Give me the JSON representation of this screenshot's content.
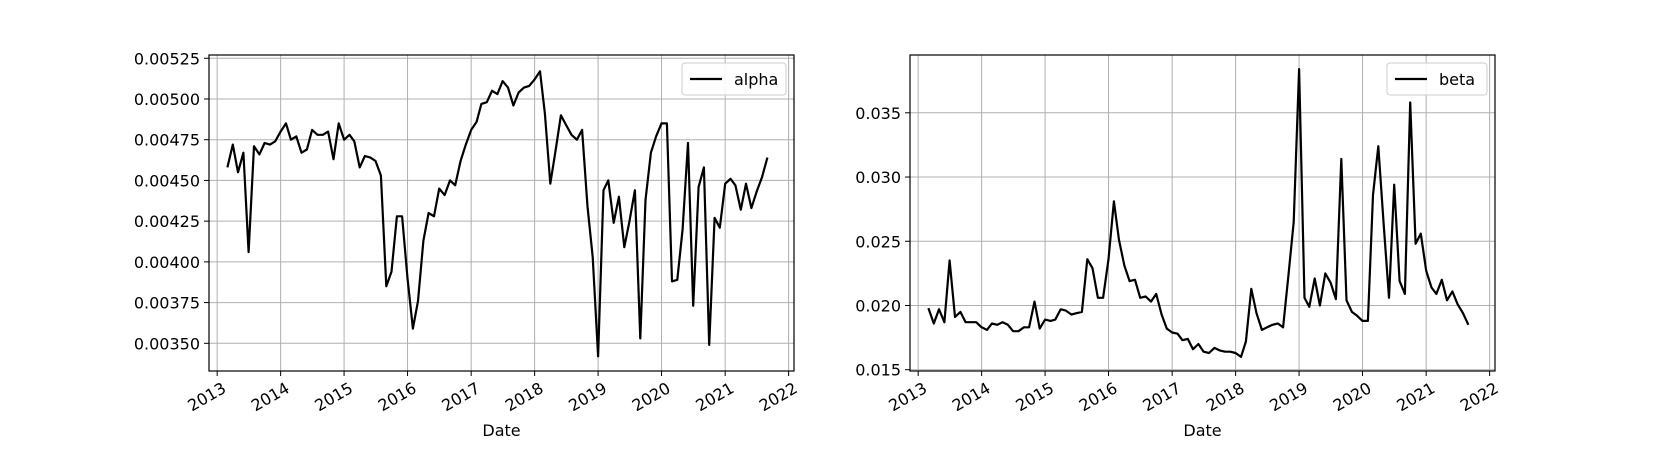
{
  "chart_data": [
    {
      "type": "line",
      "xlabel": "Date",
      "ylabel": "",
      "x_ticks": [
        "2013",
        "2014",
        "2015",
        "2016",
        "2017",
        "2018",
        "2019",
        "2020",
        "2021",
        "2022"
      ],
      "y_ticks": [
        "0.00350",
        "0.00375",
        "0.00400",
        "0.00425",
        "0.00450",
        "0.00475",
        "0.00500",
        "0.00525"
      ],
      "xlim": [
        "2012-11-15",
        "2022-02-01"
      ],
      "ylim": [
        0.00333,
        0.00527
      ],
      "grid": true,
      "legend": "top-right",
      "series": [
        {
          "name": "alpha",
          "color": "#000000",
          "points": [
            [
              "2013-03-01",
              0.00458
            ],
            [
              "2013-04-01",
              0.00472
            ],
            [
              "2013-05-01",
              0.00455
            ],
            [
              "2013-06-01",
              0.00467
            ],
            [
              "2013-07-01",
              0.00406
            ],
            [
              "2013-08-01",
              0.00471
            ],
            [
              "2013-09-01",
              0.00466
            ],
            [
              "2013-10-01",
              0.00473
            ],
            [
              "2013-11-01",
              0.00472
            ],
            [
              "2013-12-01",
              0.00474
            ],
            [
              "2014-01-01",
              0.0048
            ],
            [
              "2014-02-01",
              0.00485
            ],
            [
              "2014-03-01",
              0.00475
            ],
            [
              "2014-04-01",
              0.00477
            ],
            [
              "2014-05-01",
              0.00467
            ],
            [
              "2014-06-01",
              0.00469
            ],
            [
              "2014-07-01",
              0.00481
            ],
            [
              "2014-08-01",
              0.00478
            ],
            [
              "2014-09-01",
              0.00478
            ],
            [
              "2014-10-01",
              0.0048
            ],
            [
              "2014-11-01",
              0.00463
            ],
            [
              "2014-12-01",
              0.00485
            ],
            [
              "2015-01-01",
              0.00475
            ],
            [
              "2015-02-01",
              0.00478
            ],
            [
              "2015-03-01",
              0.00474
            ],
            [
              "2015-04-01",
              0.00458
            ],
            [
              "2015-05-01",
              0.00465
            ],
            [
              "2015-06-01",
              0.00464
            ],
            [
              "2015-07-01",
              0.00462
            ],
            [
              "2015-08-01",
              0.00453
            ],
            [
              "2015-09-01",
              0.00385
            ],
            [
              "2015-10-01",
              0.00394
            ],
            [
              "2015-11-01",
              0.00428
            ],
            [
              "2015-12-01",
              0.00428
            ],
            [
              "2016-01-01",
              0.0039
            ],
            [
              "2016-02-01",
              0.00359
            ],
            [
              "2016-03-01",
              0.00376
            ],
            [
              "2016-04-01",
              0.00413
            ],
            [
              "2016-05-01",
              0.0043
            ],
            [
              "2016-06-01",
              0.00428
            ],
            [
              "2016-07-01",
              0.00445
            ],
            [
              "2016-08-01",
              0.00441
            ],
            [
              "2016-09-01",
              0.0045
            ],
            [
              "2016-10-01",
              0.00447
            ],
            [
              "2016-11-01",
              0.00462
            ],
            [
              "2016-12-01",
              0.00472
            ],
            [
              "2017-01-01",
              0.00481
            ],
            [
              "2017-02-01",
              0.00486
            ],
            [
              "2017-03-01",
              0.00497
            ],
            [
              "2017-04-01",
              0.00498
            ],
            [
              "2017-05-01",
              0.00505
            ],
            [
              "2017-06-01",
              0.00503
            ],
            [
              "2017-07-01",
              0.00511
            ],
            [
              "2017-08-01",
              0.00507
            ],
            [
              "2017-09-01",
              0.00496
            ],
            [
              "2017-10-01",
              0.00504
            ],
            [
              "2017-11-01",
              0.00507
            ],
            [
              "2017-12-01",
              0.00508
            ],
            [
              "2018-01-01",
              0.00512
            ],
            [
              "2018-02-01",
              0.00517
            ],
            [
              "2018-03-01",
              0.00491
            ],
            [
              "2018-04-01",
              0.00448
            ],
            [
              "2018-05-01",
              0.00468
            ],
            [
              "2018-06-01",
              0.0049
            ],
            [
              "2018-07-01",
              0.00484
            ],
            [
              "2018-08-01",
              0.00478
            ],
            [
              "2018-09-01",
              0.00475
            ],
            [
              "2018-10-01",
              0.00481
            ],
            [
              "2018-11-01",
              0.00434
            ],
            [
              "2018-12-01",
              0.00403
            ],
            [
              "2019-01-01",
              0.00342
            ],
            [
              "2019-02-01",
              0.00444
            ],
            [
              "2019-03-01",
              0.0045
            ],
            [
              "2019-04-01",
              0.00424
            ],
            [
              "2019-05-01",
              0.0044
            ],
            [
              "2019-06-01",
              0.00409
            ],
            [
              "2019-07-01",
              0.00425
            ],
            [
              "2019-08-01",
              0.00444
            ],
            [
              "2019-09-01",
              0.00353
            ],
            [
              "2019-10-01",
              0.00438
            ],
            [
              "2019-11-01",
              0.00467
            ],
            [
              "2019-12-01",
              0.00477
            ],
            [
              "2020-01-01",
              0.00485
            ],
            [
              "2020-02-01",
              0.00485
            ],
            [
              "2020-03-01",
              0.00388
            ],
            [
              "2020-04-01",
              0.00389
            ],
            [
              "2020-05-01",
              0.0042
            ],
            [
              "2020-06-01",
              0.00473
            ],
            [
              "2020-07-01",
              0.00373
            ],
            [
              "2020-08-01",
              0.00446
            ],
            [
              "2020-09-01",
              0.00458
            ],
            [
              "2020-10-01",
              0.00349
            ],
            [
              "2020-11-01",
              0.00427
            ],
            [
              "2020-12-01",
              0.00421
            ],
            [
              "2021-01-01",
              0.00448
            ],
            [
              "2021-02-01",
              0.00451
            ],
            [
              "2021-03-01",
              0.00447
            ],
            [
              "2021-04-01",
              0.00432
            ],
            [
              "2021-05-01",
              0.00448
            ],
            [
              "2021-06-01",
              0.00433
            ],
            [
              "2021-07-01",
              0.00443
            ],
            [
              "2021-08-01",
              0.00452
            ],
            [
              "2021-09-01",
              0.00464
            ]
          ]
        }
      ]
    },
    {
      "type": "line",
      "xlabel": "Date",
      "ylabel": "",
      "x_ticks": [
        "2013",
        "2014",
        "2015",
        "2016",
        "2017",
        "2018",
        "2019",
        "2020",
        "2021",
        "2022"
      ],
      "y_ticks": [
        "0.015",
        "0.020",
        "0.025",
        "0.030",
        "0.035"
      ],
      "xlim": [
        "2012-11-15",
        "2022-02-01"
      ],
      "ylim": [
        0.0149,
        0.0395
      ],
      "grid": true,
      "legend": "top-right",
      "series": [
        {
          "name": "beta",
          "color": "#000000",
          "points": [
            [
              "2013-03-01",
              0.0198
            ],
            [
              "2013-04-01",
              0.0186
            ],
            [
              "2013-05-01",
              0.0197
            ],
            [
              "2013-06-01",
              0.0187
            ],
            [
              "2013-07-01",
              0.0235
            ],
            [
              "2013-08-01",
              0.0191
            ],
            [
              "2013-09-01",
              0.0195
            ],
            [
              "2013-10-01",
              0.0187
            ],
            [
              "2013-11-01",
              0.0187
            ],
            [
              "2013-12-01",
              0.0187
            ],
            [
              "2014-01-01",
              0.0183
            ],
            [
              "2014-02-01",
              0.0181
            ],
            [
              "2014-03-01",
              0.0186
            ],
            [
              "2014-04-01",
              0.0185
            ],
            [
              "2014-05-01",
              0.0187
            ],
            [
              "2014-06-01",
              0.0185
            ],
            [
              "2014-07-01",
              0.018
            ],
            [
              "2014-08-01",
              0.018
            ],
            [
              "2014-09-01",
              0.0183
            ],
            [
              "2014-10-01",
              0.0183
            ],
            [
              "2014-11-01",
              0.0203
            ],
            [
              "2014-12-01",
              0.0182
            ],
            [
              "2015-01-01",
              0.0189
            ],
            [
              "2015-02-01",
              0.0188
            ],
            [
              "2015-03-01",
              0.0189
            ],
            [
              "2015-04-01",
              0.0197
            ],
            [
              "2015-05-01",
              0.0196
            ],
            [
              "2015-06-01",
              0.0193
            ],
            [
              "2015-07-01",
              0.0194
            ],
            [
              "2015-08-01",
              0.0195
            ],
            [
              "2015-09-01",
              0.0236
            ],
            [
              "2015-10-01",
              0.0229
            ],
            [
              "2015-11-01",
              0.0206
            ],
            [
              "2015-12-01",
              0.0206
            ],
            [
              "2016-01-01",
              0.0236
            ],
            [
              "2016-02-01",
              0.0281
            ],
            [
              "2016-03-01",
              0.0251
            ],
            [
              "2016-04-01",
              0.0231
            ],
            [
              "2016-05-01",
              0.0219
            ],
            [
              "2016-06-01",
              0.022
            ],
            [
              "2016-07-01",
              0.0206
            ],
            [
              "2016-08-01",
              0.0207
            ],
            [
              "2016-09-01",
              0.0203
            ],
            [
              "2016-10-01",
              0.0209
            ],
            [
              "2016-11-01",
              0.0193
            ],
            [
              "2016-12-01",
              0.0182
            ],
            [
              "2017-01-01",
              0.0179
            ],
            [
              "2017-02-01",
              0.0178
            ],
            [
              "2017-03-01",
              0.0173
            ],
            [
              "2017-04-01",
              0.0174
            ],
            [
              "2017-05-01",
              0.0166
            ],
            [
              "2017-06-01",
              0.017
            ],
            [
              "2017-07-01",
              0.0164
            ],
            [
              "2017-08-01",
              0.0163
            ],
            [
              "2017-09-01",
              0.0167
            ],
            [
              "2017-10-01",
              0.0165
            ],
            [
              "2017-11-01",
              0.0164
            ],
            [
              "2017-12-01",
              0.0164
            ],
            [
              "2018-01-01",
              0.0163
            ],
            [
              "2018-02-01",
              0.016
            ],
            [
              "2018-03-01",
              0.0172
            ],
            [
              "2018-04-01",
              0.0213
            ],
            [
              "2018-05-01",
              0.0194
            ],
            [
              "2018-06-01",
              0.0181
            ],
            [
              "2018-07-01",
              0.0183
            ],
            [
              "2018-08-01",
              0.0185
            ],
            [
              "2018-09-01",
              0.0186
            ],
            [
              "2018-10-01",
              0.0183
            ],
            [
              "2018-11-01",
              0.0224
            ],
            [
              "2018-12-01",
              0.0265
            ],
            [
              "2019-01-01",
              0.0384
            ],
            [
              "2019-02-01",
              0.0206
            ],
            [
              "2019-03-01",
              0.0199
            ],
            [
              "2019-04-01",
              0.0221
            ],
            [
              "2019-05-01",
              0.02
            ],
            [
              "2019-06-01",
              0.0225
            ],
            [
              "2019-07-01",
              0.0218
            ],
            [
              "2019-08-01",
              0.0205
            ],
            [
              "2019-09-01",
              0.0314
            ],
            [
              "2019-10-01",
              0.0204
            ],
            [
              "2019-11-01",
              0.0195
            ],
            [
              "2019-12-01",
              0.0192
            ],
            [
              "2020-01-01",
              0.0188
            ],
            [
              "2020-02-01",
              0.0188
            ],
            [
              "2020-03-01",
              0.0286
            ],
            [
              "2020-04-01",
              0.0324
            ],
            [
              "2020-05-01",
              0.0264
            ],
            [
              "2020-06-01",
              0.0206
            ],
            [
              "2020-07-01",
              0.0294
            ],
            [
              "2020-08-01",
              0.0219
            ],
            [
              "2020-09-01",
              0.0209
            ],
            [
              "2020-10-01",
              0.0358
            ],
            [
              "2020-11-01",
              0.0248
            ],
            [
              "2020-12-01",
              0.0256
            ],
            [
              "2021-01-01",
              0.0227
            ],
            [
              "2021-02-01",
              0.0214
            ],
            [
              "2021-03-01",
              0.0209
            ],
            [
              "2021-04-01",
              0.022
            ],
            [
              "2021-05-01",
              0.0204
            ],
            [
              "2021-06-01",
              0.0211
            ],
            [
              "2021-07-01",
              0.0201
            ],
            [
              "2021-08-01",
              0.0194
            ],
            [
              "2021-09-01",
              0.0185
            ]
          ]
        }
      ]
    }
  ]
}
